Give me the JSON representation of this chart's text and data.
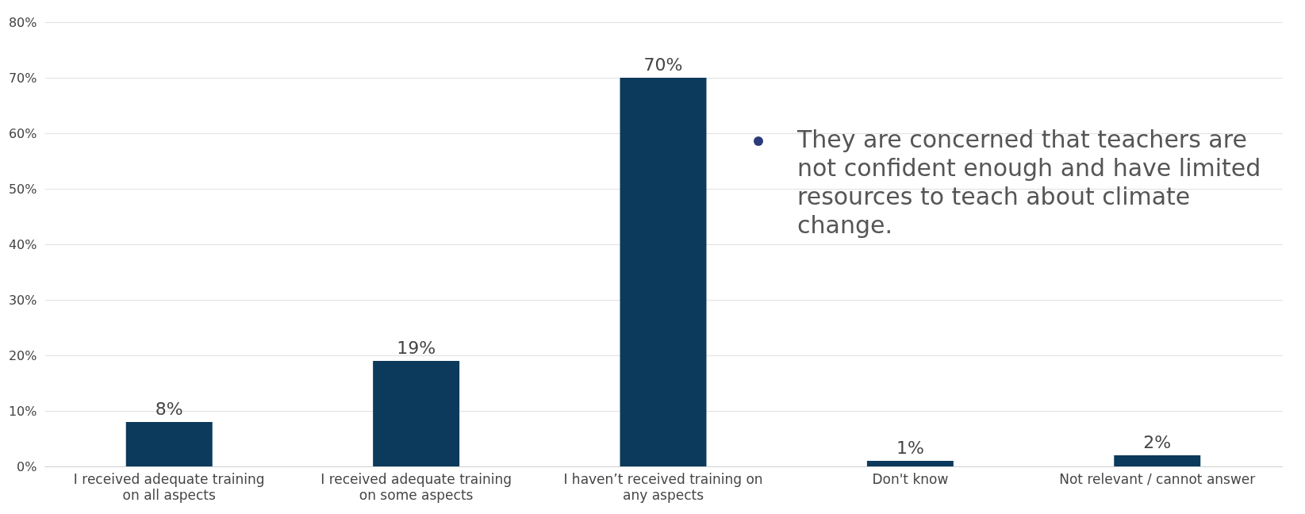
{
  "chart_data": {
    "type": "bar",
    "categories": [
      "I received adequate training on all aspects",
      "I received adequate training on some aspects",
      "I haven’t received training on any aspects",
      "Don't know",
      "Not relevant / cannot answer"
    ],
    "values": [
      8,
      19,
      70,
      1,
      2
    ],
    "color": "#0b3a5c",
    "value_labels": [
      "8%",
      "19%",
      "70%",
      "1%",
      "2%"
    ],
    "ylim": [
      0,
      80
    ],
    "yticks": [
      {
        "value": 0,
        "label": "0%"
      },
      {
        "value": 10,
        "label": "10%"
      },
      {
        "value": 20,
        "label": "20%"
      },
      {
        "value": 30,
        "label": "30%"
      },
      {
        "value": 40,
        "label": "40%"
      },
      {
        "value": 50,
        "label": "50%"
      },
      {
        "value": 60,
        "label": "60%"
      },
      {
        "value": 70,
        "label": "70%"
      },
      {
        "value": 80,
        "label": "80%"
      }
    ],
    "grid": "y",
    "annotations": [
      "They are concerned that teachers are not confident enough and have limited resources to teach about climate change."
    ]
  }
}
